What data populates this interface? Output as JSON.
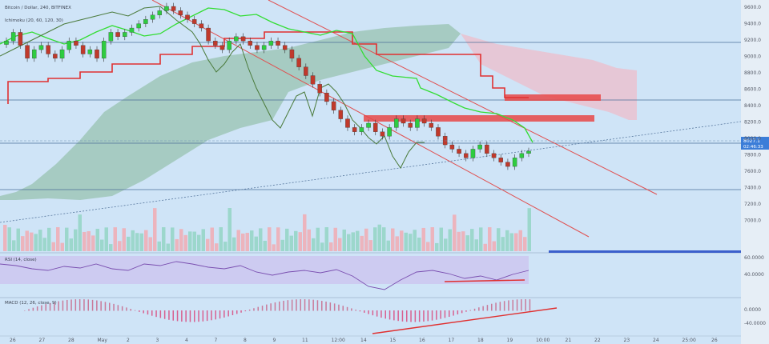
{
  "legend": {
    "main_title": "Bitcoin / Dollar, 240, BITFINEX",
    "ichimoku": "Ichimoku (20, 60, 120, 30)",
    "rsi": "RSI (14, close)",
    "macd": "MACD (12, 26, close, 9)"
  },
  "price_labels": [
    "9600.0",
    "9400.0",
    "9200.0",
    "9000.0",
    "8800.0",
    "8600.0",
    "8400.0",
    "8200.0",
    "8000.0",
    "7800.0",
    "7600.0",
    "7400.0",
    "7200.0",
    "7000.0"
  ],
  "current_price": {
    "price": "8027.1",
    "countdown": "02:46:33"
  },
  "rsi_labels": [
    "60.0000",
    "40.0000"
  ],
  "macd_labels": [
    "0.0000",
    "-40.0000"
  ],
  "time_labels": [
    "26",
    "27",
    "28",
    "May",
    "2",
    "3",
    "4",
    "7",
    "8",
    "9",
    "11",
    "12:00",
    "14",
    "15",
    "16",
    "17",
    "18",
    "19",
    "10:00",
    "21",
    "22",
    "23",
    "24",
    "25:00",
    "26"
  ],
  "colors": {
    "background": "#cfe4f7",
    "candle_up": "#2ecc40",
    "candle_down": "#c0392b",
    "kijun": "#e03030",
    "tenkan": "#33dd33",
    "chikou": "#4a7a3a",
    "cloud_bull": "#9fc7b8",
    "cloud_bear": "#e8c3d2",
    "resistance_zone": "#e84848",
    "channel": "#e05050",
    "rsi_band": "#ccc8f0",
    "rsi_line": "#7a4fb0",
    "volume_up": "#8fd3c0",
    "volume_down": "#f2a7ae",
    "trend_dotted": "#5a7aa0"
  },
  "chart_data": {
    "type": "candlestick",
    "title": "Bitcoin / Dollar, 240, BITFINEX",
    "ylim": [
      7000,
      9700
    ],
    "current_price": 8027.1,
    "horizontal_levels": [
      9050,
      8800,
      8050,
      7690
    ],
    "candles_close_approx": [
      9300,
      9400,
      9250,
      9100,
      9200,
      9250,
      9150,
      9100,
      9200,
      9300,
      9250,
      9150,
      9200,
      9100,
      9300,
      9400,
      9350,
      9400,
      9450,
      9500,
      9550,
      9600,
      9650,
      9700,
      9650,
      9600,
      9550,
      9500,
      9450,
      9300,
      9250,
      9200,
      9300,
      9350,
      9300,
      9250,
      9200,
      9250,
      9300,
      9250,
      9200,
      9100,
      9000,
      8900,
      8800,
      8700,
      8600,
      8500,
      8400,
      8300,
      8250,
      8300,
      8350,
      8250,
      8200,
      8300,
      8400,
      8350,
      8300,
      8400,
      8350,
      8300,
      8200,
      8100,
      8050,
      8000,
      7950,
      8050,
      8100,
      8000,
      7950,
      7900,
      7850,
      7950,
      8000,
      8027
    ],
    "resistance_zones": [
      [
        8560,
        8620
      ],
      [
        8770,
        8830
      ]
    ],
    "indicators": [
      "Ichimoku (20, 60, 120, 30)",
      "Volume",
      "RSI (14, close)",
      "MACD (12, 26, close, 9)"
    ]
  }
}
